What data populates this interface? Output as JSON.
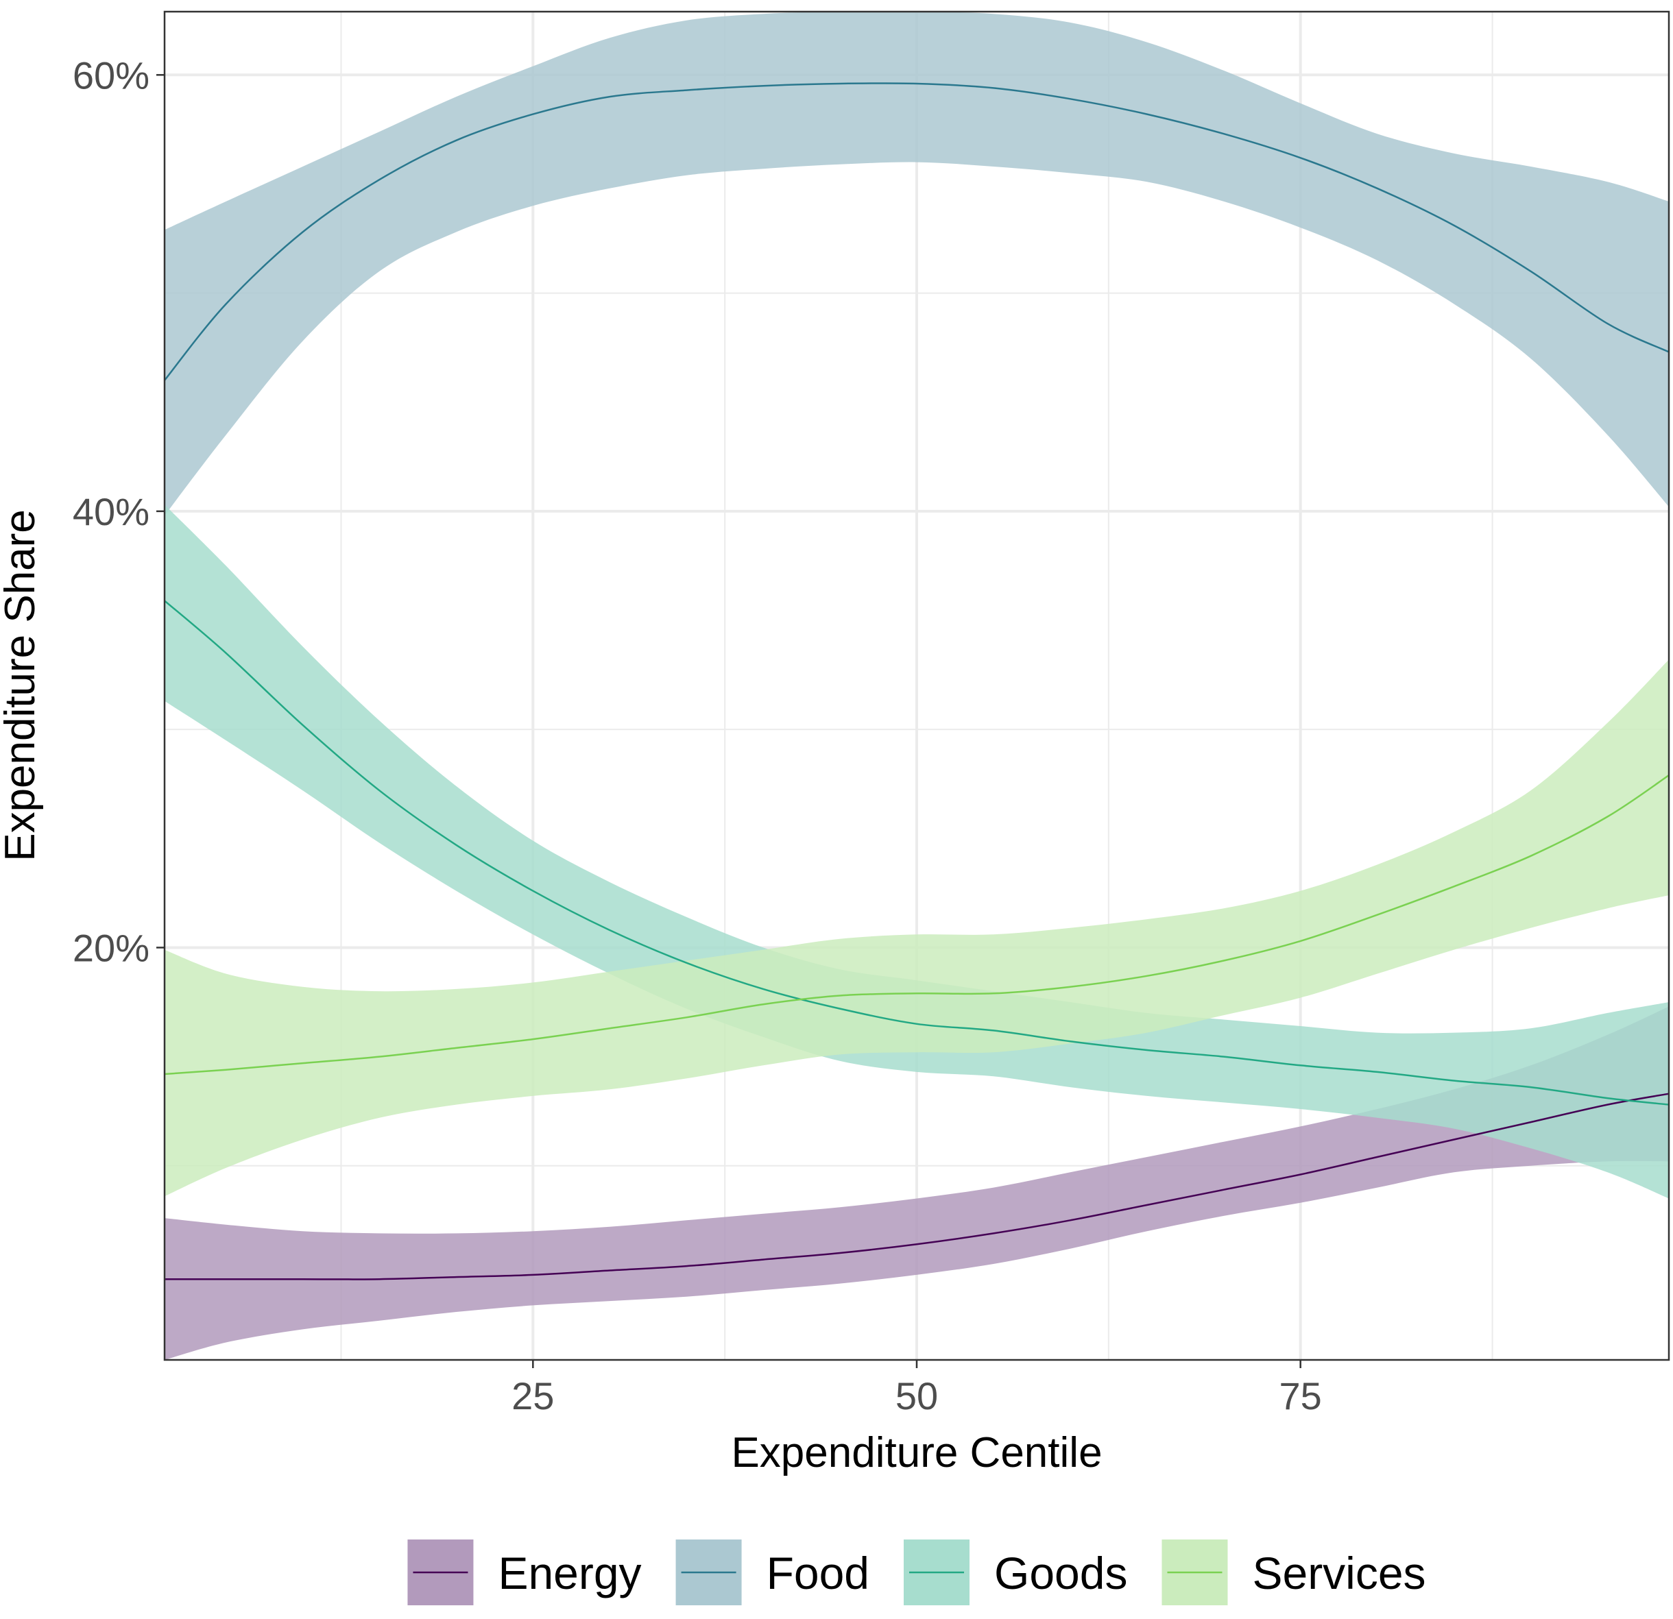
{
  "chart_data": {
    "type": "line",
    "title": "",
    "xlabel": "Expenditure Centile",
    "ylabel": "Expenditure Share",
    "xlim": [
      1,
      99
    ],
    "ylim": [
      1.1,
      62.9
    ],
    "x_ticks": [
      25,
      50,
      75
    ],
    "x_tick_labels": [
      "25",
      "50",
      "75"
    ],
    "y_ticks": [
      20,
      40,
      60
    ],
    "y_tick_labels": [
      "20%",
      "40%",
      "60%"
    ],
    "grid": true,
    "legend_position": "bottom",
    "x": [
      1,
      5,
      10,
      15,
      20,
      25,
      30,
      35,
      40,
      45,
      50,
      55,
      60,
      65,
      70,
      75,
      80,
      85,
      90,
      95,
      99
    ],
    "series": [
      {
        "name": "Energy",
        "color": "#440154",
        "fill": "#b29abc",
        "values": [
          4.8,
          4.8,
          4.8,
          4.8,
          4.9,
          5.0,
          5.2,
          5.4,
          5.7,
          6.0,
          6.4,
          6.9,
          7.5,
          8.2,
          8.9,
          9.6,
          10.4,
          11.2,
          12.0,
          12.8,
          13.3
        ],
        "lower": [
          1.1,
          1.9,
          2.5,
          2.9,
          3.3,
          3.6,
          3.8,
          4.0,
          4.3,
          4.6,
          5.0,
          5.5,
          6.2,
          7.0,
          7.7,
          8.3,
          9.0,
          9.7,
          10.0,
          10.2,
          10.2
        ],
        "upper": [
          7.6,
          7.3,
          7.0,
          6.9,
          6.9,
          7.0,
          7.2,
          7.5,
          7.8,
          8.1,
          8.5,
          9.0,
          9.7,
          10.4,
          11.1,
          11.8,
          12.6,
          13.5,
          14.6,
          16.0,
          17.3
        ]
      },
      {
        "name": "Food",
        "color": "#2a788e",
        "fill": "#abc8d1",
        "values": [
          46.0,
          49.5,
          52.8,
          55.2,
          57.0,
          58.2,
          59.0,
          59.3,
          59.5,
          59.6,
          59.6,
          59.4,
          58.9,
          58.2,
          57.3,
          56.2,
          54.8,
          53.1,
          51.0,
          48.6,
          47.3
        ],
        "lower": [
          39.8,
          43.5,
          47.8,
          51.0,
          52.8,
          54.0,
          54.8,
          55.4,
          55.7,
          55.9,
          56.0,
          55.8,
          55.5,
          55.1,
          54.2,
          53.0,
          51.5,
          49.5,
          47.0,
          43.5,
          40.2
        ],
        "upper": [
          52.9,
          54.2,
          55.8,
          57.4,
          59.0,
          60.4,
          61.7,
          62.5,
          62.8,
          62.9,
          62.9,
          62.8,
          62.4,
          61.5,
          60.2,
          58.7,
          57.3,
          56.4,
          55.8,
          55.1,
          54.2
        ]
      },
      {
        "name": "Goods",
        "color": "#22a884",
        "fill": "#a7ddce",
        "values": [
          35.9,
          33.5,
          30.2,
          27.2,
          24.7,
          22.6,
          20.8,
          19.3,
          18.1,
          17.2,
          16.5,
          16.2,
          15.7,
          15.3,
          15.0,
          14.6,
          14.3,
          13.9,
          13.6,
          13.1,
          12.8
        ],
        "lower": [
          31.3,
          29.5,
          27.2,
          24.8,
          22.6,
          20.6,
          18.8,
          17.2,
          15.9,
          14.8,
          14.3,
          14.1,
          13.6,
          13.2,
          12.9,
          12.6,
          12.2,
          11.7,
          10.8,
          9.7,
          8.5
        ],
        "upper": [
          40.3,
          37.5,
          33.8,
          30.4,
          27.4,
          24.9,
          23.0,
          21.4,
          20.0,
          19.0,
          18.5,
          18.0,
          17.5,
          17.0,
          16.7,
          16.4,
          16.1,
          16.1,
          16.3,
          17.0,
          17.5
        ]
      },
      {
        "name": "Services",
        "color": "#7ad151",
        "fill": "#cbecbd",
        "values": [
          14.2,
          14.4,
          14.7,
          15.0,
          15.4,
          15.8,
          16.3,
          16.8,
          17.4,
          17.8,
          17.9,
          17.9,
          18.2,
          18.7,
          19.4,
          20.3,
          21.5,
          22.8,
          24.2,
          26.0,
          27.9
        ],
        "lower": [
          8.6,
          9.9,
          11.2,
          12.2,
          12.8,
          13.2,
          13.5,
          14.0,
          14.6,
          15.1,
          15.2,
          15.2,
          15.6,
          16.1,
          16.9,
          17.7,
          18.8,
          19.9,
          20.9,
          21.8,
          22.4
        ],
        "upper": [
          19.9,
          18.8,
          18.2,
          18.0,
          18.1,
          18.4,
          18.9,
          19.4,
          19.9,
          20.4,
          20.6,
          20.6,
          20.9,
          21.3,
          21.8,
          22.6,
          23.8,
          25.3,
          27.2,
          30.3,
          33.2
        ]
      }
    ]
  }
}
